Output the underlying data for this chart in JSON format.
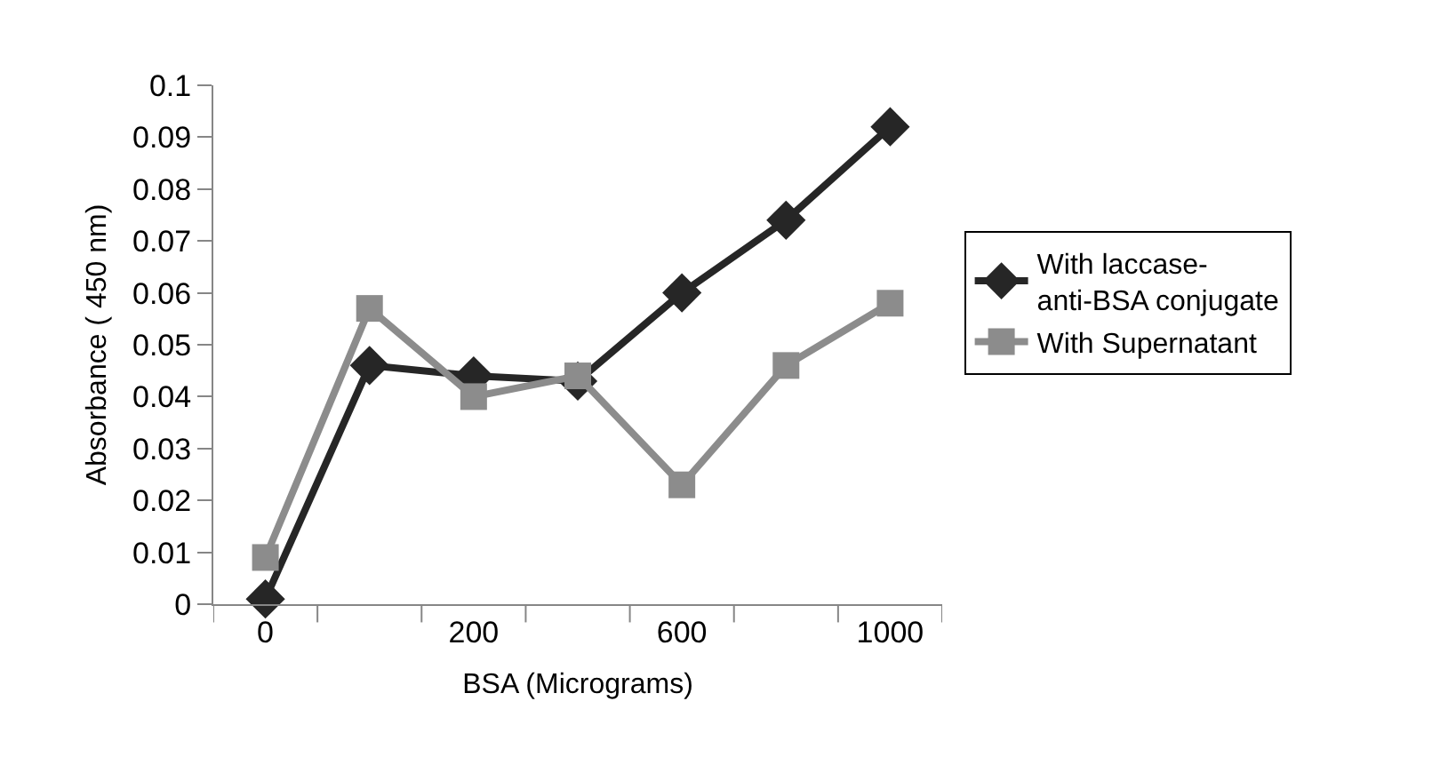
{
  "chart_data": {
    "type": "line",
    "xlabel": "BSA (Micrograms)",
    "ylabel": "Absorbance ( 450 nm)",
    "categories": [
      "0",
      null,
      "200",
      null,
      "600",
      null,
      "1000"
    ],
    "ylim": [
      0,
      0.1
    ],
    "yticks": [
      0,
      0.01,
      0.02,
      0.03,
      0.04,
      0.05,
      0.06,
      0.07,
      0.08,
      0.09,
      0.1
    ],
    "grid": false,
    "legend": "right",
    "line_style": "solid",
    "series": [
      {
        "name": "With laccase-anti-BSA conjugate",
        "color": "#262626",
        "marker": "diamond",
        "values": [
          0.001,
          0.046,
          0.044,
          0.043,
          0.06,
          0.074,
          0.092
        ]
      },
      {
        "name": "With Supernatant",
        "color": "#8c8c8c",
        "marker": "square",
        "values": [
          0.009,
          0.057,
          0.04,
          0.044,
          0.023,
          0.046,
          0.058
        ]
      }
    ]
  }
}
